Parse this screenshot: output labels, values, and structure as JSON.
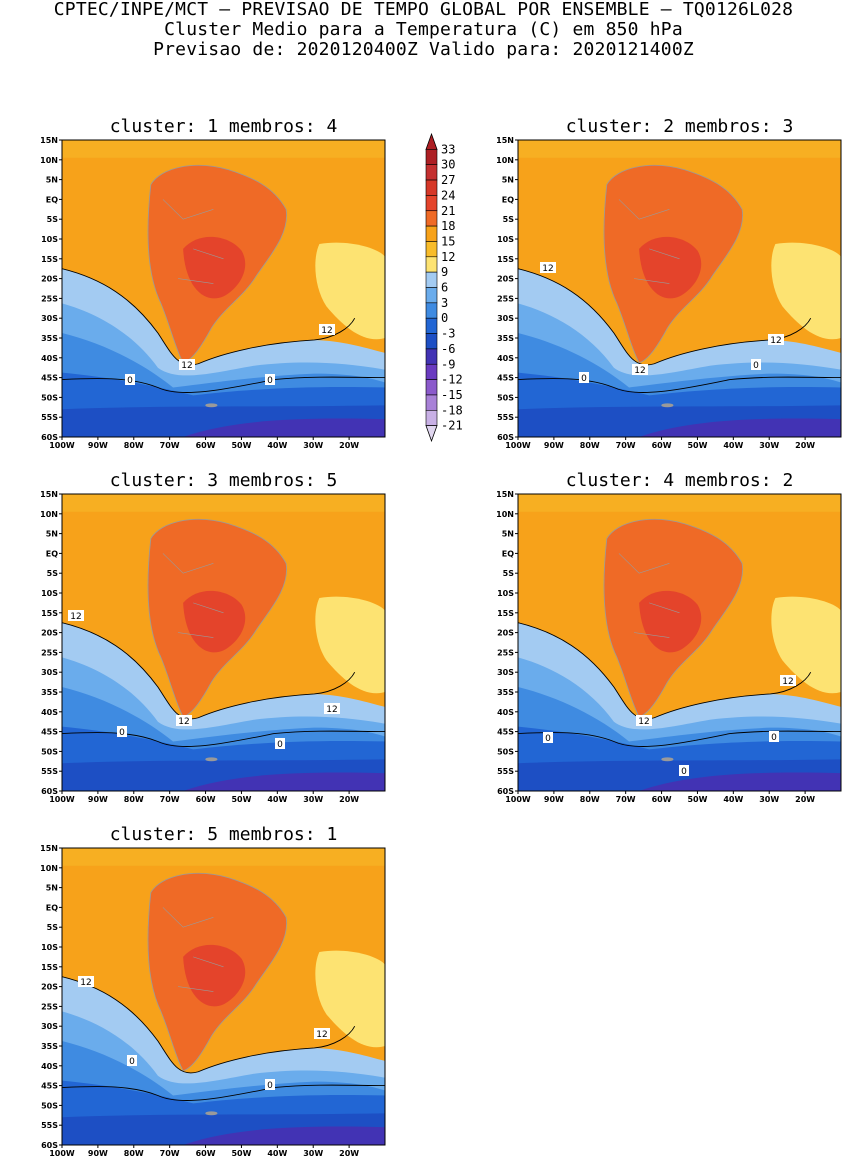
{
  "header": {
    "line1": "CPTEC/INPE/MCT – PREVISAO DE TEMPO GLOBAL POR ENSEMBLE – TQ0126L028",
    "line2": "Cluster Medio para a Temperatura (C) em 850 hPa",
    "line3": "Previsao de: 2020120400Z   Valido para: 2020121400Z"
  },
  "axes": {
    "lat_labels": [
      "15N",
      "10N",
      "5N",
      "EQ",
      "5S",
      "10S",
      "15S",
      "20S",
      "25S",
      "30S",
      "35S",
      "40S",
      "45S",
      "50S",
      "55S",
      "60S"
    ],
    "lon_labels": [
      "100W",
      "90W",
      "80W",
      "70W",
      "60W",
      "50W",
      "40W",
      "30W",
      "20W"
    ]
  },
  "colorbar": {
    "labels": [
      "33",
      "30",
      "27",
      "24",
      "21",
      "18",
      "15",
      "12",
      "9",
      "6",
      "3",
      "0",
      "-3",
      "-6",
      "-9",
      "-12",
      "-15",
      "-18",
      "-21"
    ],
    "colors": [
      "#ad1f24",
      "#c43030",
      "#d63828",
      "#e4442b",
      "#ef6a26",
      "#f7a21a",
      "#f8bc2a",
      "#fde372",
      "#a3cbf2",
      "#6aacec",
      "#3f8be1",
      "#2266d4",
      "#1d4fc4",
      "#4233b4",
      "#6a3bc0",
      "#8b5acb",
      "#a881d7",
      "#c8b0e5",
      "#e0d6ef"
    ]
  },
  "contour_labels": {
    "c12": "12",
    "c0": "0"
  },
  "panels": [
    {
      "title": "cluster: 1   membros: 4"
    },
    {
      "title": "cluster: 2   membros: 3"
    },
    {
      "title": "cluster: 3   membros: 5"
    },
    {
      "title": "cluster: 4   membros: 2"
    },
    {
      "title": "cluster: 5   membros: 1"
    }
  ]
}
